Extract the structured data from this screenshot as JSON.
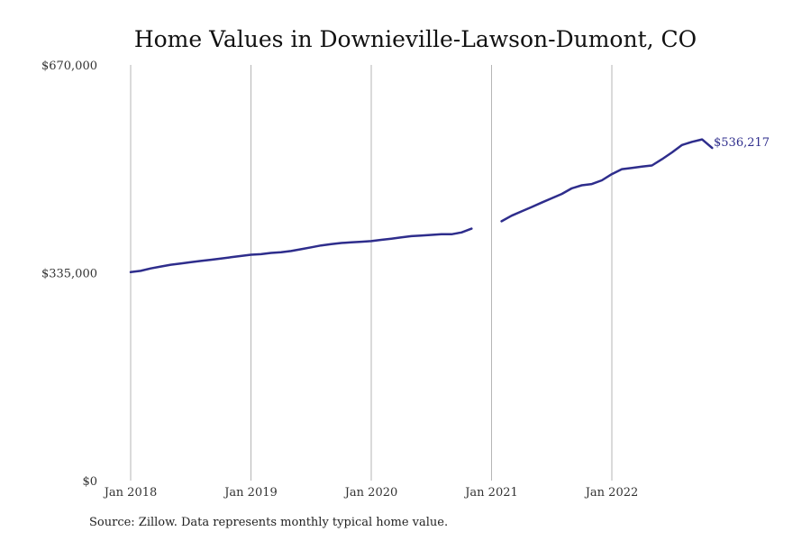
{
  "chart_data": {
    "type": "line",
    "title": "Home Values in Downieville-Lawson-Dumont, CO",
    "xlabel": "",
    "ylabel": "",
    "ylim": [
      0,
      670000
    ],
    "y_ticks": [
      {
        "value": 0,
        "label": "$0"
      },
      {
        "value": 335000,
        "label": "$335,000"
      },
      {
        "value": 670000,
        "label": "$670,000"
      }
    ],
    "x_ticks": [
      {
        "date": "2018-01",
        "label": "Jan 2018"
      },
      {
        "date": "2019-01",
        "label": "Jan 2019"
      },
      {
        "date": "2020-01",
        "label": "Jan 2020"
      },
      {
        "date": "2021-01",
        "label": "Jan 2021"
      },
      {
        "date": "2022-01",
        "label": "Jan 2022"
      }
    ],
    "grid": "vertical",
    "line_color": "#2e2d8c",
    "series": [
      {
        "x": [
          "2018-01",
          "2018-02",
          "2018-03",
          "2018-04",
          "2018-05",
          "2018-06",
          "2018-07",
          "2018-08",
          "2018-09",
          "2018-10",
          "2018-11",
          "2018-12",
          "2019-01",
          "2019-02",
          "2019-03",
          "2019-04",
          "2019-05",
          "2019-06",
          "2019-07",
          "2019-08",
          "2019-09",
          "2019-10",
          "2019-11",
          "2019-12",
          "2020-01",
          "2020-02",
          "2020-03",
          "2020-04",
          "2020-05",
          "2020-06",
          "2020-07",
          "2020-08",
          "2020-09",
          "2020-10",
          "2020-11",
          "2020-12",
          "2021-01",
          "2021-02",
          "2021-03",
          "2021-04",
          "2021-05",
          "2021-06",
          "2021-07",
          "2021-08",
          "2021-09",
          "2021-10",
          "2021-11",
          "2021-12",
          "2022-01",
          "2022-02",
          "2022-03",
          "2022-04",
          "2022-05",
          "2022-06",
          "2022-07",
          "2022-08",
          "2022-09",
          "2022-10",
          "2022-11"
        ],
        "values": [
          336000,
          338000,
          342000,
          345000,
          348000,
          350000,
          352000,
          354000,
          356000,
          358000,
          360000,
          362000,
          364000,
          365000,
          367000,
          368000,
          370000,
          373000,
          376000,
          379000,
          381000,
          383000,
          384000,
          385000,
          386000,
          388000,
          390000,
          392000,
          394000,
          395000,
          396000,
          397000,
          397000,
          400000,
          406000,
          null,
          null,
          418000,
          427000,
          434000,
          441000,
          448000,
          455000,
          462000,
          471000,
          476000,
          478000,
          484000,
          494000,
          502000,
          504000,
          506000,
          508000,
          518000,
          529000,
          541000,
          546000,
          550000,
          536217
        ]
      }
    ],
    "end_label": "$536,217",
    "source": "Source: Zillow. Data represents monthly typical home value."
  }
}
